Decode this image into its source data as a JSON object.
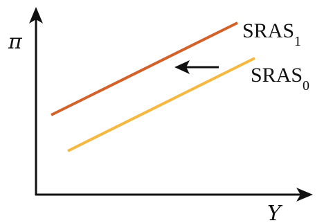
{
  "axes": {
    "y_label": "π",
    "x_label": "Y"
  },
  "curves": [
    {
      "name": "SRAS",
      "subscript": "1",
      "color": "#D2612A"
    },
    {
      "name": "SRAS",
      "subscript": "0",
      "color": "#F5B841"
    }
  ],
  "shift_arrow": {
    "direction": "left",
    "icon": "arrow-left-icon"
  },
  "colors": {
    "axis": "#111111",
    "background": "#ffffff"
  }
}
